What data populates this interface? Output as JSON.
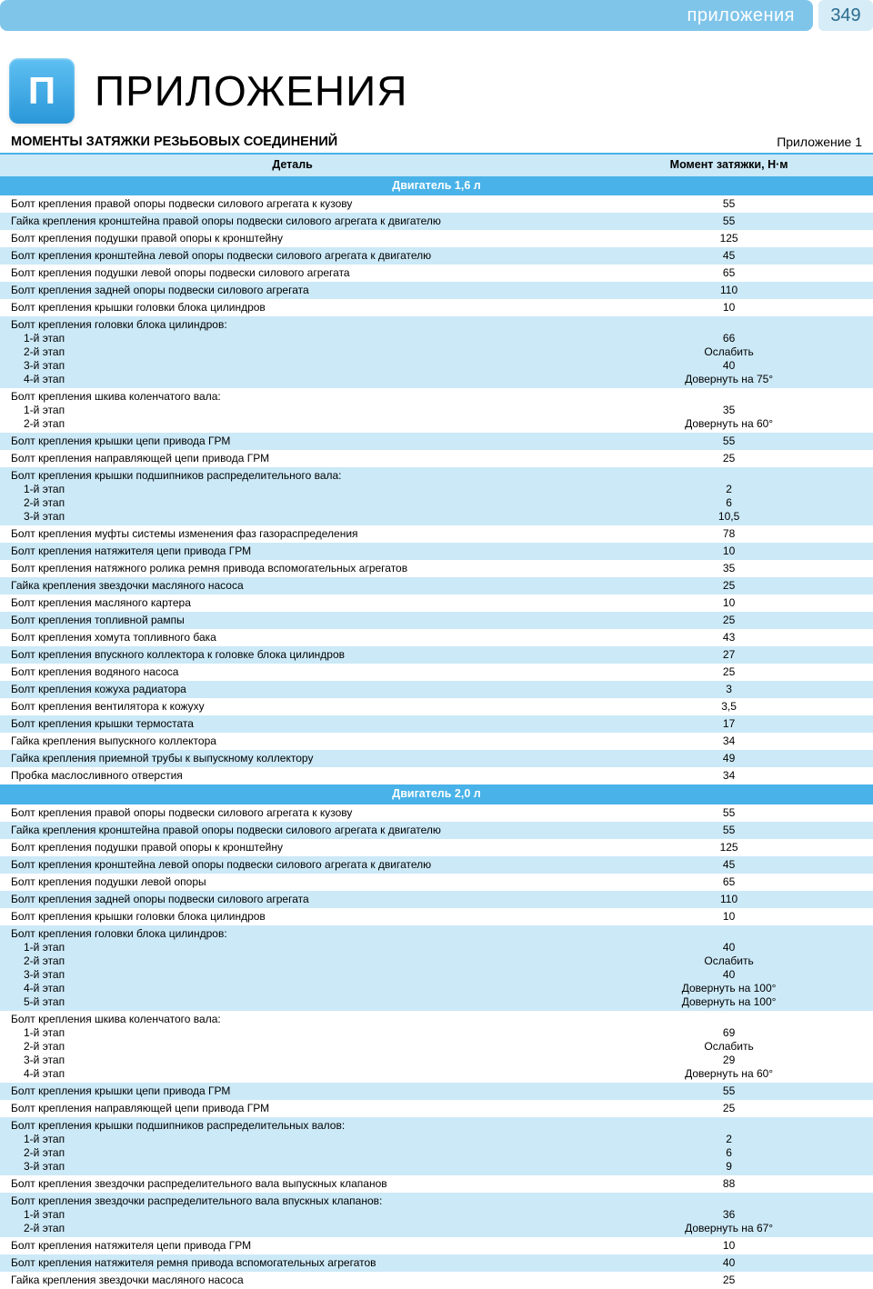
{
  "header": {
    "banner_text": "приложения",
    "page_number": "349"
  },
  "title": {
    "letter": "П",
    "main": "ПРИЛОЖЕНИЯ",
    "sub_left": "МОМЕНТЫ ЗАТЯЖКИ РЕЗЬБОВЫХ СОЕДИНЕНИЙ",
    "sub_right": "Приложение 1"
  },
  "table": {
    "columns": {
      "detail": "Деталь",
      "torque": "Момент затяжки, Н·м"
    },
    "col_widths": [
      "67%",
      "33%"
    ],
    "header_bg": "#cce9f7",
    "section_bg": "#49b2e8",
    "shade_bg": "#cce9f7",
    "plain_bg": "#ffffff",
    "text_color": "#000000",
    "section_text_color": "#ffffff",
    "font_size": 12,
    "rows": [
      {
        "type": "section",
        "label": "Двигатель 1,6 л"
      },
      {
        "type": "data",
        "shade": false,
        "detail": "Болт крепления правой опоры подвески силового агрегата к кузову",
        "torque": "55"
      },
      {
        "type": "data",
        "shade": true,
        "detail": "Гайка крепления кронштейна правой опоры подвески силового агрегата к двигателю",
        "torque": "55"
      },
      {
        "type": "data",
        "shade": false,
        "detail": "Болт крепления подушки правой опоры к кронштейну",
        "torque": "125"
      },
      {
        "type": "data",
        "shade": true,
        "detail": "Болт крепления кронштейна левой опоры подвески силового агрегата к двигателю",
        "torque": "45"
      },
      {
        "type": "data",
        "shade": false,
        "detail": "Болт крепления подушки левой опоры подвески силового агрегата",
        "torque": "65"
      },
      {
        "type": "data",
        "shade": true,
        "detail": "Болт крепления задней опоры подвески силового агрегата",
        "torque": "110"
      },
      {
        "type": "data",
        "shade": false,
        "detail": "Болт крепления крышки головки блока цилиндров",
        "torque": "10"
      },
      {
        "type": "multi",
        "shade": true,
        "detail_head": "Болт крепления головки блока цилиндров:",
        "subs": [
          {
            "d": "1-й этап",
            "t": "66"
          },
          {
            "d": "2-й этап",
            "t": "Ослабить"
          },
          {
            "d": "3-й этап",
            "t": "40"
          },
          {
            "d": "4-й этап",
            "t": "Довернуть на 75°"
          }
        ]
      },
      {
        "type": "multi",
        "shade": false,
        "detail_head": "Болт крепления шкива коленчатого вала:",
        "subs": [
          {
            "d": "1-й этап",
            "t": "35"
          },
          {
            "d": "2-й этап",
            "t": "Довернуть на 60°"
          }
        ]
      },
      {
        "type": "data",
        "shade": true,
        "detail": "Болт крепления крышки цепи привода ГРМ",
        "torque": "55"
      },
      {
        "type": "data",
        "shade": false,
        "detail": "Болт крепления направляющей цепи привода ГРМ",
        "torque": "25"
      },
      {
        "type": "multi",
        "shade": true,
        "detail_head": "Болт крепления крышки подшипников распределительного вала:",
        "subs": [
          {
            "d": "1-й этап",
            "t": "2"
          },
          {
            "d": "2-й этап",
            "t": "6"
          },
          {
            "d": "3-й этап",
            "t": "10,5"
          }
        ]
      },
      {
        "type": "data",
        "shade": false,
        "detail": "Болт крепления муфты системы изменения фаз газораспределения",
        "torque": "78"
      },
      {
        "type": "data",
        "shade": true,
        "detail": "Болт крепления натяжителя цепи привода ГРМ",
        "torque": "10"
      },
      {
        "type": "data",
        "shade": false,
        "detail": "Болт крепления натяжного ролика ремня привода вспомогательных агрегатов",
        "torque": "35"
      },
      {
        "type": "data",
        "shade": true,
        "detail": "Гайка крепления звездочки масляного насоса",
        "torque": "25"
      },
      {
        "type": "data",
        "shade": false,
        "detail": "Болт крепления масляного картера",
        "torque": "10"
      },
      {
        "type": "data",
        "shade": true,
        "detail": "Болт крепления топливной рампы",
        "torque": "25"
      },
      {
        "type": "data",
        "shade": false,
        "detail": "Болт крепления хомута топливного бака",
        "torque": "43"
      },
      {
        "type": "data",
        "shade": true,
        "detail": "Болт крепления впускного коллектора к головке блока цилиндров",
        "torque": "27"
      },
      {
        "type": "data",
        "shade": false,
        "detail": "Болт крепления водяного насоса",
        "torque": "25"
      },
      {
        "type": "data",
        "shade": true,
        "detail": "Болт крепления кожуха радиатора",
        "torque": "3"
      },
      {
        "type": "data",
        "shade": false,
        "detail": "Болт крепления вентилятора к кожуху",
        "torque": "3,5"
      },
      {
        "type": "data",
        "shade": true,
        "detail": "Болт крепления крышки термостата",
        "torque": "17"
      },
      {
        "type": "data",
        "shade": false,
        "detail": "Гайка крепления выпускного коллектора",
        "torque": "34"
      },
      {
        "type": "data",
        "shade": true,
        "detail": "Гайка крепления приемной трубы к выпускному коллектору",
        "torque": "49"
      },
      {
        "type": "data",
        "shade": false,
        "detail": "Пробка маслосливного отверстия",
        "torque": "34"
      },
      {
        "type": "section",
        "label": "Двигатель 2,0 л"
      },
      {
        "type": "data",
        "shade": false,
        "detail": "Болт крепления правой опоры подвески силового агрегата к кузову",
        "torque": "55"
      },
      {
        "type": "data",
        "shade": true,
        "detail": "Гайка крепления кронштейна правой опоры подвески силового агрегата к двигателю",
        "torque": "55"
      },
      {
        "type": "data",
        "shade": false,
        "detail": "Болт крепления подушки правой опоры к кронштейну",
        "torque": "125"
      },
      {
        "type": "data",
        "shade": true,
        "detail": "Болт крепления кронштейна левой опоры подвески силового агрегата к двигателю",
        "torque": "45"
      },
      {
        "type": "data",
        "shade": false,
        "detail": "Болт крепления подушки левой опоры",
        "torque": "65"
      },
      {
        "type": "data",
        "shade": true,
        "detail": "Болт крепления задней опоры подвески силового агрегата",
        "torque": "110"
      },
      {
        "type": "data",
        "shade": false,
        "detail": "Болт крепления крышки головки блока цилиндров",
        "torque": "10"
      },
      {
        "type": "multi",
        "shade": true,
        "detail_head": "Болт крепления головки блока цилиндров:",
        "subs": [
          {
            "d": "1-й этап",
            "t": "40"
          },
          {
            "d": "2-й этап",
            "t": "Ослабить"
          },
          {
            "d": "3-й этап",
            "t": "40"
          },
          {
            "d": "4-й этап",
            "t": "Довернуть на 100°"
          },
          {
            "d": "5-й этап",
            "t": "Довернуть на 100°"
          }
        ]
      },
      {
        "type": "multi",
        "shade": false,
        "detail_head": "Болт крепления шкива коленчатого вала:",
        "subs": [
          {
            "d": "1-й этап",
            "t": "69"
          },
          {
            "d": "2-й этап",
            "t": "Ослабить"
          },
          {
            "d": "3-й этап",
            "t": "29"
          },
          {
            "d": "4-й этап",
            "t": "Довернуть на 60°"
          }
        ]
      },
      {
        "type": "data",
        "shade": true,
        "detail": "Болт крепления крышки цепи привода ГРМ",
        "torque": "55"
      },
      {
        "type": "data",
        "shade": false,
        "detail": "Болт крепления направляющей цепи привода ГРМ",
        "torque": "25"
      },
      {
        "type": "multi",
        "shade": true,
        "detail_head": "Болт крепления крышки подшипников распределительных валов:",
        "subs": [
          {
            "d": "1-й этап",
            "t": "2"
          },
          {
            "d": "2-й этап",
            "t": "6"
          },
          {
            "d": "3-й этап",
            "t": "9"
          }
        ]
      },
      {
        "type": "data",
        "shade": false,
        "detail": "Болт крепления звездочки распределительного вала выпускных клапанов",
        "torque": "88"
      },
      {
        "type": "multi",
        "shade": true,
        "detail_head": "Болт крепления звездочки распределительного вала впускных клапанов:",
        "subs": [
          {
            "d": "1-й этап",
            "t": "36"
          },
          {
            "d": "2-й этап",
            "t": "Довернуть на 67°"
          }
        ]
      },
      {
        "type": "data",
        "shade": false,
        "detail": "Болт крепления натяжителя цепи привода ГРМ",
        "torque": "10"
      },
      {
        "type": "data",
        "shade": true,
        "detail": "Болт крепления натяжителя ремня привода вспомогательных агрегатов",
        "torque": "40"
      },
      {
        "type": "data",
        "shade": false,
        "detail": "Гайка крепления звездочки масляного насоса",
        "torque": "25"
      }
    ]
  }
}
